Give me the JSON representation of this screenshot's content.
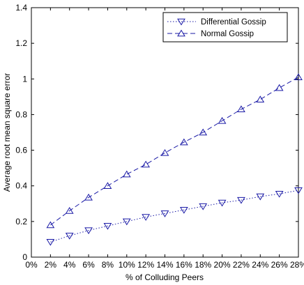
{
  "chart_data": {
    "type": "line",
    "title": "",
    "xlabel": "% of Colluding Peers",
    "ylabel": "Average root mean square error",
    "x_ticks": [
      "0%",
      "2%",
      "4%",
      "6%",
      "8%",
      "10%",
      "12%",
      "14%",
      "16%",
      "18%",
      "20%",
      "22%",
      "24%",
      "26%",
      "28%"
    ],
    "y_ticks": [
      "0",
      "0.2",
      "0.4",
      "0.6",
      "0.8",
      "1",
      "1.2",
      "1.4"
    ],
    "xlim": [
      0,
      28
    ],
    "ylim": [
      0,
      1.4
    ],
    "grid": false,
    "legend_position": "top-right",
    "x": [
      2,
      4,
      6,
      8,
      10,
      12,
      14,
      16,
      18,
      20,
      22,
      24,
      26,
      28
    ],
    "series": [
      {
        "name": "Differential Gossip",
        "line_style": "dotted",
        "marker": "triangle-down",
        "color": "#1a1aa6",
        "values": [
          0.085,
          0.12,
          0.15,
          0.175,
          0.2,
          0.225,
          0.245,
          0.265,
          0.285,
          0.305,
          0.32,
          0.34,
          0.355,
          0.375
        ]
      },
      {
        "name": "Normal Gossip",
        "line_style": "dashed",
        "marker": "triangle-up",
        "color": "#1a1aa6",
        "values": [
          0.18,
          0.26,
          0.335,
          0.4,
          0.465,
          0.52,
          0.585,
          0.645,
          0.7,
          0.765,
          0.83,
          0.885,
          0.95,
          1.01
        ]
      }
    ]
  }
}
